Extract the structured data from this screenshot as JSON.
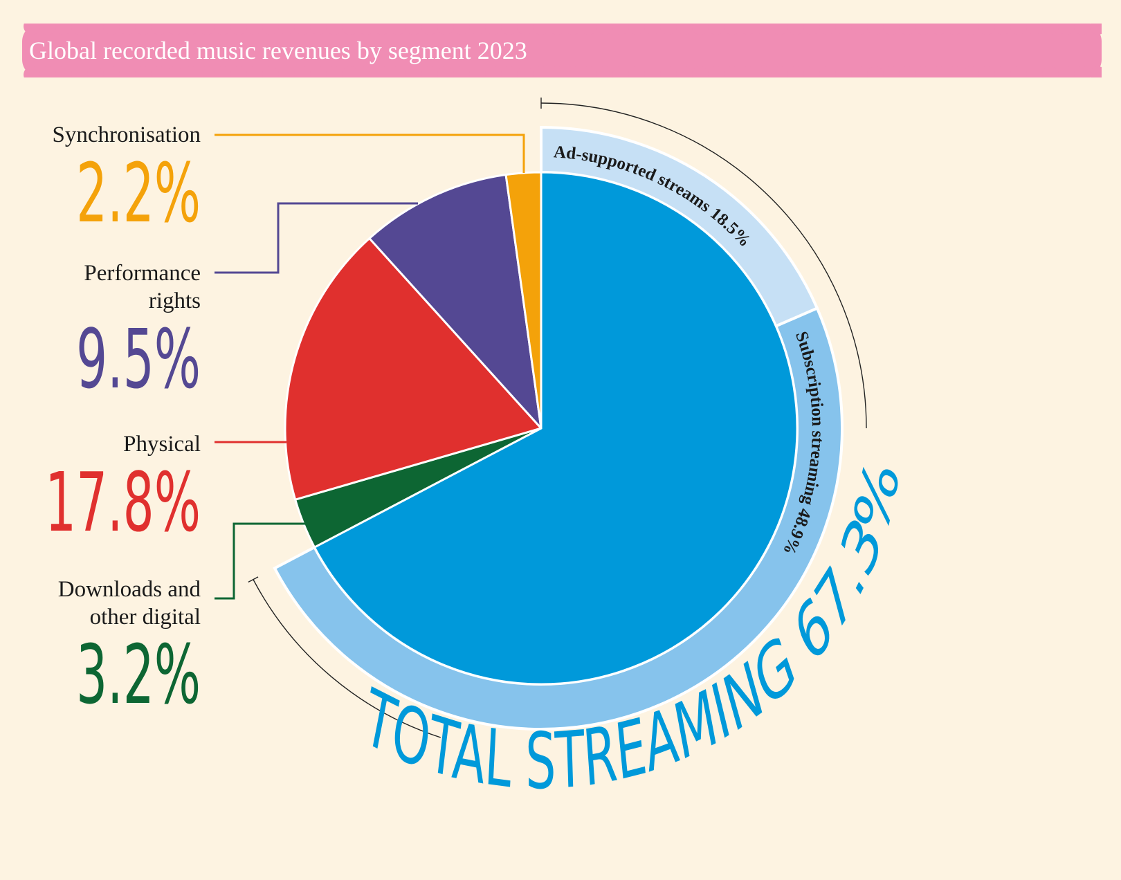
{
  "title": "Global recorded music revenues by segment 2023",
  "colors": {
    "background": "#fdf3e1",
    "title_bar": "#f08db4",
    "streaming_inner": "#0099da",
    "streaming_ring": "#86c3ec",
    "ad_supported_ring": "#c6e0f5",
    "physical": "#e0302e",
    "performance_rights": "#544893",
    "synchronisation": "#f4a20a",
    "downloads": "#0d6633"
  },
  "chart_data": {
    "type": "pie",
    "title": "Global recorded music revenues by segment 2023",
    "unit": "%",
    "segments": [
      {
        "key": "streaming",
        "name": "TOTAL STREAMING",
        "value": 67.3,
        "color": "#0099da",
        "sub": [
          {
            "key": "subscription",
            "name": "Subscription streaming",
            "value": 48.9,
            "color": "#86c3ec"
          },
          {
            "key": "adsupported",
            "name": "Ad-supported streams",
            "value": 18.5,
            "color": "#c6e0f5"
          }
        ]
      },
      {
        "key": "synchronisation",
        "name": "Synchronisation",
        "value": 2.2,
        "color": "#f4a20a"
      },
      {
        "key": "performance",
        "name": "Performance rights",
        "value": 9.5,
        "color": "#544893"
      },
      {
        "key": "physical",
        "name": "Physical",
        "value": 17.8,
        "color": "#e0302e"
      },
      {
        "key": "downloads",
        "name": "Downloads and other digital",
        "value": 3.2,
        "color": "#0d6633"
      }
    ]
  },
  "labels": {
    "synchronisation": {
      "lines": [
        "Synchronisation"
      ],
      "value": "2.2%"
    },
    "performance": {
      "lines": [
        "Performance",
        "rights"
      ],
      "value": "9.5%"
    },
    "physical": {
      "lines": [
        "Physical"
      ],
      "value": "17.8%"
    },
    "downloads": {
      "lines": [
        "Downloads and",
        "other digital"
      ],
      "value": "3.2%"
    },
    "adsupported": "Ad-supported streams  18.5%",
    "subscription": "Subscription streaming  48.9%",
    "total": "TOTAL STREAMING 67.3%"
  }
}
